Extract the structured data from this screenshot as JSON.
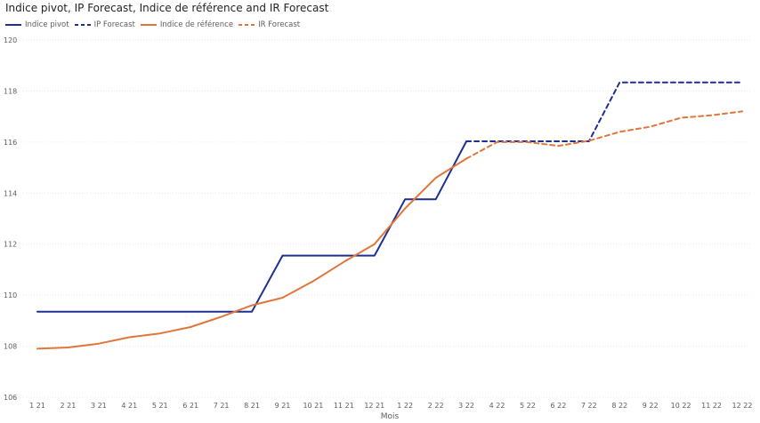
{
  "chart_data": {
    "type": "line",
    "title": "Indice pivot, IP Forecast, Indice de référence and IR Forecast",
    "xlabel": "Mois",
    "ylabel": "",
    "ylim": [
      106,
      120
    ],
    "yticks": [
      106,
      108,
      110,
      112,
      114,
      116,
      118,
      120
    ],
    "grid": true,
    "legend_position": "top-left",
    "categories": [
      "1 21",
      "2 21",
      "3 21",
      "4 21",
      "5 21",
      "6 21",
      "7 21",
      "8 21",
      "9 21",
      "10 21",
      "11 21",
      "12 21",
      "1 22",
      "2 22",
      "3 22",
      "4 22",
      "5 22",
      "6 22",
      "7 22",
      "8 22",
      "9 22",
      "10 22",
      "11 22",
      "12 22"
    ],
    "series": [
      {
        "name": "Indice pivot",
        "color": "#1f2f8f",
        "dash": false,
        "style": "step",
        "values": [
          109.35,
          109.35,
          109.35,
          109.35,
          109.35,
          109.35,
          109.35,
          109.35,
          111.55,
          111.55,
          111.55,
          111.55,
          113.76,
          113.76,
          116.03,
          null,
          null,
          null,
          null,
          null,
          null,
          null,
          null,
          null
        ]
      },
      {
        "name": "IP Forecast",
        "color": "#1f2f8f",
        "dash": true,
        "style": "step",
        "values": [
          null,
          null,
          null,
          null,
          null,
          null,
          null,
          null,
          null,
          null,
          null,
          null,
          null,
          null,
          116.03,
          116.03,
          116.03,
          116.03,
          116.03,
          118.34,
          118.34,
          118.34,
          118.34,
          118.34
        ]
      },
      {
        "name": "Indice de référence",
        "color": "#e0763a",
        "dash": false,
        "style": "line",
        "values": [
          107.9,
          107.95,
          108.1,
          108.35,
          108.5,
          108.75,
          109.15,
          109.6,
          109.9,
          110.55,
          111.3,
          112.0,
          113.4,
          114.6,
          115.35,
          null,
          null,
          null,
          null,
          null,
          null,
          null,
          null,
          null
        ]
      },
      {
        "name": "IR Forecast",
        "color": "#e0763a",
        "dash": true,
        "style": "line",
        "values": [
          null,
          null,
          null,
          null,
          null,
          null,
          null,
          null,
          null,
          null,
          null,
          null,
          null,
          null,
          115.35,
          116.0,
          116.0,
          115.85,
          116.05,
          116.4,
          116.6,
          116.95,
          117.05,
          117.2
        ]
      }
    ]
  }
}
